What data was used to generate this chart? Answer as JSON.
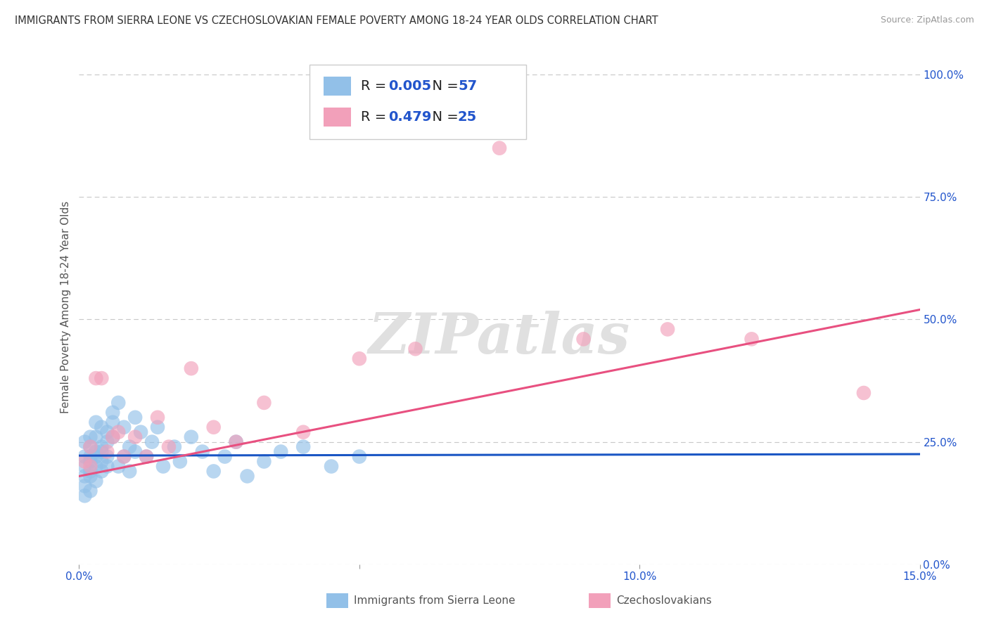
{
  "title": "IMMIGRANTS FROM SIERRA LEONE VS CZECHOSLOVAKIAN FEMALE POVERTY AMONG 18-24 YEAR OLDS CORRELATION CHART",
  "source": "Source: ZipAtlas.com",
  "ylabel": "Female Poverty Among 18-24 Year Olds",
  "xlim": [
    0.0,
    0.15
  ],
  "ylim": [
    0.0,
    1.05
  ],
  "xticks": [
    0.0,
    0.05,
    0.1,
    0.15
  ],
  "xticklabels": [
    "0.0%",
    "",
    "10.0%",
    "15.0%"
  ],
  "yticks_right": [
    0.0,
    0.25,
    0.5,
    0.75,
    1.0
  ],
  "yticklabels_right": [
    "0.0%",
    "25.0%",
    "50.0%",
    "75.0%",
    "100.0%"
  ],
  "blue_color": "#92C0E8",
  "pink_color": "#F2A0BA",
  "blue_line_color": "#1A56C4",
  "pink_line_color": "#E85080",
  "grid_color": "#C8C8C8",
  "watermark_color": "#E0E0E0",
  "blue_R": "0.005",
  "blue_N": "57",
  "pink_R": "0.479",
  "pink_N": "25",
  "legend_text_color": "#222222",
  "legend_RN_color": "#2255CC",
  "blue_scatter_x": [
    0.001,
    0.001,
    0.001,
    0.001,
    0.001,
    0.001,
    0.002,
    0.002,
    0.002,
    0.002,
    0.002,
    0.002,
    0.002,
    0.003,
    0.003,
    0.003,
    0.003,
    0.003,
    0.003,
    0.004,
    0.004,
    0.004,
    0.004,
    0.004,
    0.005,
    0.005,
    0.005,
    0.005,
    0.006,
    0.006,
    0.006,
    0.007,
    0.007,
    0.008,
    0.008,
    0.009,
    0.009,
    0.01,
    0.01,
    0.011,
    0.012,
    0.013,
    0.014,
    0.015,
    0.017,
    0.018,
    0.02,
    0.022,
    0.024,
    0.026,
    0.028,
    0.03,
    0.033,
    0.036,
    0.04,
    0.045,
    0.05
  ],
  "blue_scatter_y": [
    0.2,
    0.22,
    0.18,
    0.25,
    0.16,
    0.14,
    0.21,
    0.19,
    0.24,
    0.22,
    0.18,
    0.26,
    0.15,
    0.2,
    0.23,
    0.17,
    0.26,
    0.29,
    0.22,
    0.21,
    0.24,
    0.28,
    0.19,
    0.23,
    0.27,
    0.2,
    0.22,
    0.25,
    0.31,
    0.26,
    0.29,
    0.33,
    0.2,
    0.28,
    0.22,
    0.24,
    0.19,
    0.3,
    0.23,
    0.27,
    0.22,
    0.25,
    0.28,
    0.2,
    0.24,
    0.21,
    0.26,
    0.23,
    0.19,
    0.22,
    0.25,
    0.18,
    0.21,
    0.23,
    0.24,
    0.2,
    0.22
  ],
  "pink_scatter_x": [
    0.001,
    0.002,
    0.002,
    0.003,
    0.004,
    0.005,
    0.006,
    0.007,
    0.008,
    0.01,
    0.012,
    0.014,
    0.016,
    0.02,
    0.024,
    0.028,
    0.033,
    0.04,
    0.05,
    0.06,
    0.075,
    0.09,
    0.105,
    0.12,
    0.14
  ],
  "pink_scatter_y": [
    0.21,
    0.24,
    0.2,
    0.38,
    0.38,
    0.23,
    0.26,
    0.27,
    0.22,
    0.26,
    0.22,
    0.3,
    0.24,
    0.4,
    0.28,
    0.25,
    0.33,
    0.27,
    0.42,
    0.44,
    0.85,
    0.46,
    0.48,
    0.46,
    0.35
  ],
  "blue_trend_x": [
    0.0,
    0.15
  ],
  "blue_trend_y": [
    0.222,
    0.225
  ],
  "pink_trend_x": [
    0.0,
    0.15
  ],
  "pink_trend_y": [
    0.18,
    0.52
  ],
  "bg_color": "#FFFFFF",
  "title_fontsize": 10.5,
  "source_fontsize": 9,
  "legend_fontsize": 14,
  "axis_label_fontsize": 11,
  "tick_fontsize": 11
}
